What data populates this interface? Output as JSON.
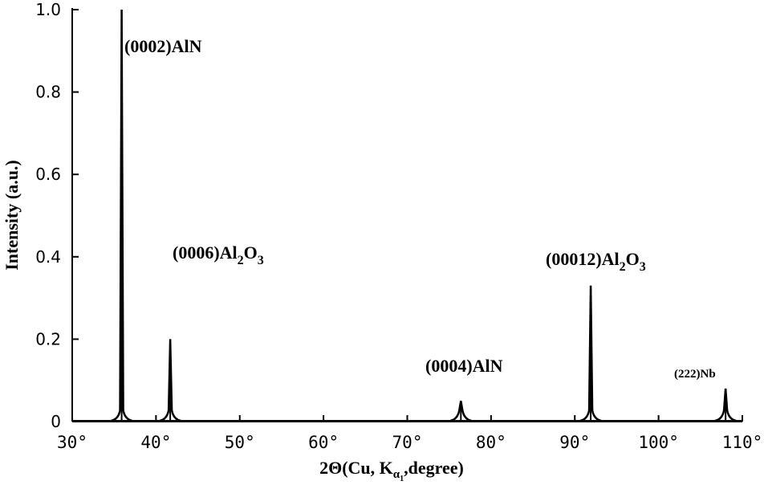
{
  "chart_data": {
    "type": "line",
    "xlabel_parts": {
      "main": "2Θ(Cu, K",
      "sub": "α",
      "subsub": "1",
      "tail": ",degree)"
    },
    "ylabel": "Intensity (a.u.)",
    "xlim": [
      30,
      110
    ],
    "ylim": [
      0,
      1.0
    ],
    "x_ticks": [
      {
        "value": 30,
        "label": "30°"
      },
      {
        "value": 40,
        "label": "40°"
      },
      {
        "value": 50,
        "label": "50°"
      },
      {
        "value": 60,
        "label": "60°"
      },
      {
        "value": 70,
        "label": "70°"
      },
      {
        "value": 80,
        "label": "80°"
      },
      {
        "value": 90,
        "label": "90°"
      },
      {
        "value": 100,
        "label": "100°"
      },
      {
        "value": 110,
        "label": "110°"
      }
    ],
    "y_ticks": [
      {
        "value": 0,
        "label": "0"
      },
      {
        "value": 0.2,
        "label": "0.2"
      },
      {
        "value": 0.4,
        "label": "0.4"
      },
      {
        "value": 0.6,
        "label": "0.6"
      },
      {
        "value": 0.8,
        "label": "0.8"
      },
      {
        "value": 1.0,
        "label": "1.0"
      }
    ],
    "peaks": [
      {
        "x": 35.9,
        "intensity": 1.0,
        "label": "(0002)AlN"
      },
      {
        "x": 41.7,
        "intensity": 0.2,
        "label": "(0006)Al2O3"
      },
      {
        "x": 76.4,
        "intensity": 0.05,
        "label": "(0004)AlN"
      },
      {
        "x": 91.9,
        "intensity": 0.33,
        "label": "(00012)Al2O3"
      },
      {
        "x": 108.0,
        "intensity": 0.08,
        "label": "(222)Nb"
      }
    ]
  }
}
